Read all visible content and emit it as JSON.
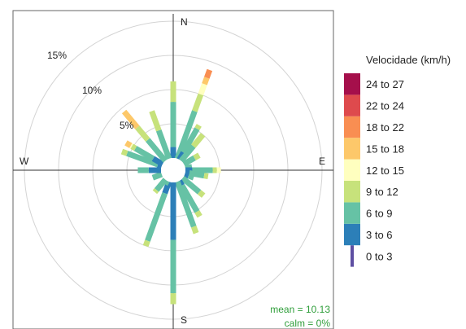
{
  "chart_data": {
    "type": "windrose",
    "compass": {
      "n": "N",
      "e": "E",
      "s": "S",
      "w": "W"
    },
    "ring_labels": [
      {
        "pct": 5,
        "text": "5%"
      },
      {
        "pct": 10,
        "text": "10%"
      },
      {
        "pct": 15,
        "text": "15%"
      }
    ],
    "rings_pct": [
      5,
      10,
      15,
      20
    ],
    "legend": {
      "title": "Velocidade (km/h)",
      "bins": [
        {
          "label": "0 to 3",
          "color": "#5e4fa2"
        },
        {
          "label": "3 to 6",
          "color": "#2c7fb8"
        },
        {
          "label": "6 to 9",
          "color": "#66c2a5"
        },
        {
          "label": "9 to 12",
          "color": "#c7e27b"
        },
        {
          "label": "12 to 15",
          "color": "#ffffbf"
        },
        {
          "label": "15 to 18",
          "color": "#fdc86a"
        },
        {
          "label": "18 to 22",
          "color": "#f98e52"
        },
        {
          "label": "22 to 24",
          "color": "#de4a4d"
        },
        {
          "label": "24 to 27",
          "color": "#a50f4b"
        }
      ]
    },
    "directions_deg": [
      0,
      20,
      30,
      40,
      60,
      80,
      90,
      100,
      110,
      130,
      150,
      160,
      180,
      200,
      210,
      220,
      250,
      270,
      290,
      300,
      320,
      340
    ],
    "frequencies_pct": [
      [
        0,
        1.6,
        6.6,
        3.0,
        0,
        0,
        0,
        0,
        0
      ],
      [
        0,
        0,
        7.4,
        2.6,
        1.6,
        1.0,
        1.2,
        0,
        0
      ],
      [
        0,
        1.2,
        4.0,
        0.6,
        0,
        0,
        0,
        0,
        0
      ],
      [
        0,
        0,
        2.8,
        2.2,
        0,
        0,
        0,
        0,
        0
      ],
      [
        0,
        0,
        1.8,
        0.8,
        0,
        0,
        0,
        0,
        0
      ],
      [
        0,
        0,
        1.0,
        0,
        0,
        0,
        0,
        0,
        0
      ],
      [
        0,
        1.0,
        3.0,
        0.6,
        0.6,
        0,
        0,
        0,
        0
      ],
      [
        0,
        0.6,
        2.2,
        0.6,
        0,
        0,
        0,
        0,
        0
      ],
      [
        0,
        0.6,
        0.8,
        0,
        0,
        0,
        0,
        0,
        0
      ],
      [
        0,
        0,
        3.2,
        0.8,
        0,
        0,
        0,
        0,
        0
      ],
      [
        0,
        0.8,
        4.4,
        0.8,
        0,
        0,
        0,
        0,
        0
      ],
      [
        0,
        0,
        7.0,
        1.0,
        0,
        0,
        0,
        0,
        0
      ],
      [
        0,
        8.4,
        7.8,
        1.6,
        0,
        0,
        0,
        0,
        0
      ],
      [
        0,
        1.8,
        7.4,
        0.8,
        0,
        0,
        0,
        0,
        0
      ],
      [
        0,
        0,
        0.6,
        0,
        0,
        0,
        0,
        0,
        0
      ],
      [
        0,
        0,
        2.0,
        0.4,
        0,
        0,
        0,
        0,
        0
      ],
      [
        0,
        0,
        1.4,
        0,
        0,
        0,
        0,
        0,
        0
      ],
      [
        0,
        1.8,
        1.6,
        0,
        0,
        0,
        0,
        0,
        0
      ],
      [
        0,
        0.6,
        4.8,
        0.8,
        0,
        0,
        0,
        0,
        0
      ],
      [
        0,
        1.6,
        3.0,
        0.6,
        0.2,
        0.8,
        0,
        0,
        0
      ],
      [
        0,
        0,
        4.0,
        2.4,
        0,
        3.0,
        0,
        0,
        0
      ],
      [
        0,
        0,
        4.4,
        3.0,
        0,
        0,
        0,
        0,
        0
      ]
    ],
    "stats": {
      "mean": "mean = 10.13",
      "calm": "calm = 0%"
    }
  }
}
